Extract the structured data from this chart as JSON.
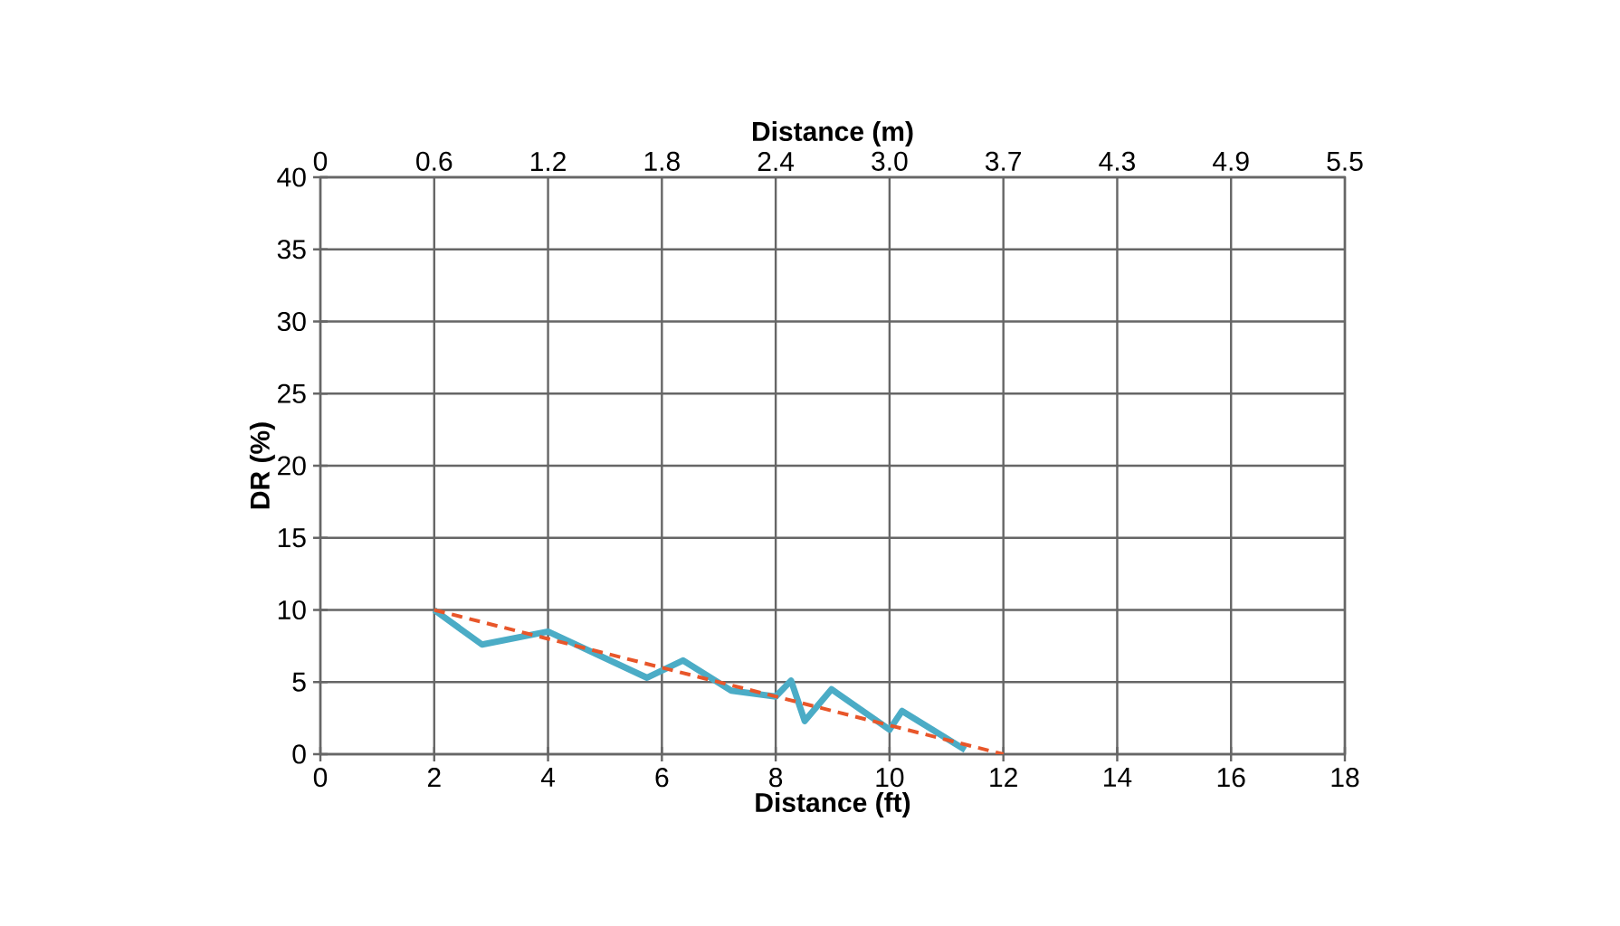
{
  "chart_data": {
    "type": "line",
    "xlabel": "Distance (ft)",
    "ylabel": "DR (%)",
    "x2label": "Distance (m)",
    "xlim": [
      0,
      18
    ],
    "xticks": [
      0,
      2,
      4,
      6,
      8,
      10,
      12,
      14,
      16,
      18
    ],
    "x2lim": [
      0,
      5.4864
    ],
    "x2ticks": [
      0,
      {
        "value": 0.6096,
        "label": "0.6"
      },
      {
        "value": 1.2192,
        "label": "1.2"
      },
      {
        "value": 1.8288,
        "label": "1.8"
      },
      {
        "value": 2.4384,
        "label": "2.4"
      },
      {
        "value": 3.048,
        "label": "3.0"
      },
      {
        "value": 3.6576,
        "label": "3.7"
      },
      {
        "value": 4.2672,
        "label": "4.3"
      },
      {
        "value": 4.8768,
        "label": "4.9"
      },
      {
        "value": 5.4864,
        "label": "5.5"
      }
    ],
    "ylim": [
      0,
      40
    ],
    "yticks": [
      0,
      5,
      10,
      15,
      20,
      25,
      30,
      35,
      40
    ],
    "grid": true,
    "marker": "none",
    "series": [
      {
        "color": "#4bacc6",
        "line_style": "solid",
        "x": [
          2,
          2.84,
          4.0,
          5.74,
          6.37,
          7.22,
          8.0,
          8.27,
          8.51,
          8.98,
          10.0,
          10.22,
          11.33
        ],
        "values": [
          10,
          7.6,
          8.5,
          5.3,
          6.5,
          4.4,
          4.0,
          5.1,
          2.3,
          4.5,
          1.7,
          3.0,
          0.3
        ]
      },
      {
        "color": "#e8562a",
        "line_style": "dashed",
        "x": [
          2,
          12
        ],
        "values": [
          10,
          0
        ]
      }
    ]
  }
}
